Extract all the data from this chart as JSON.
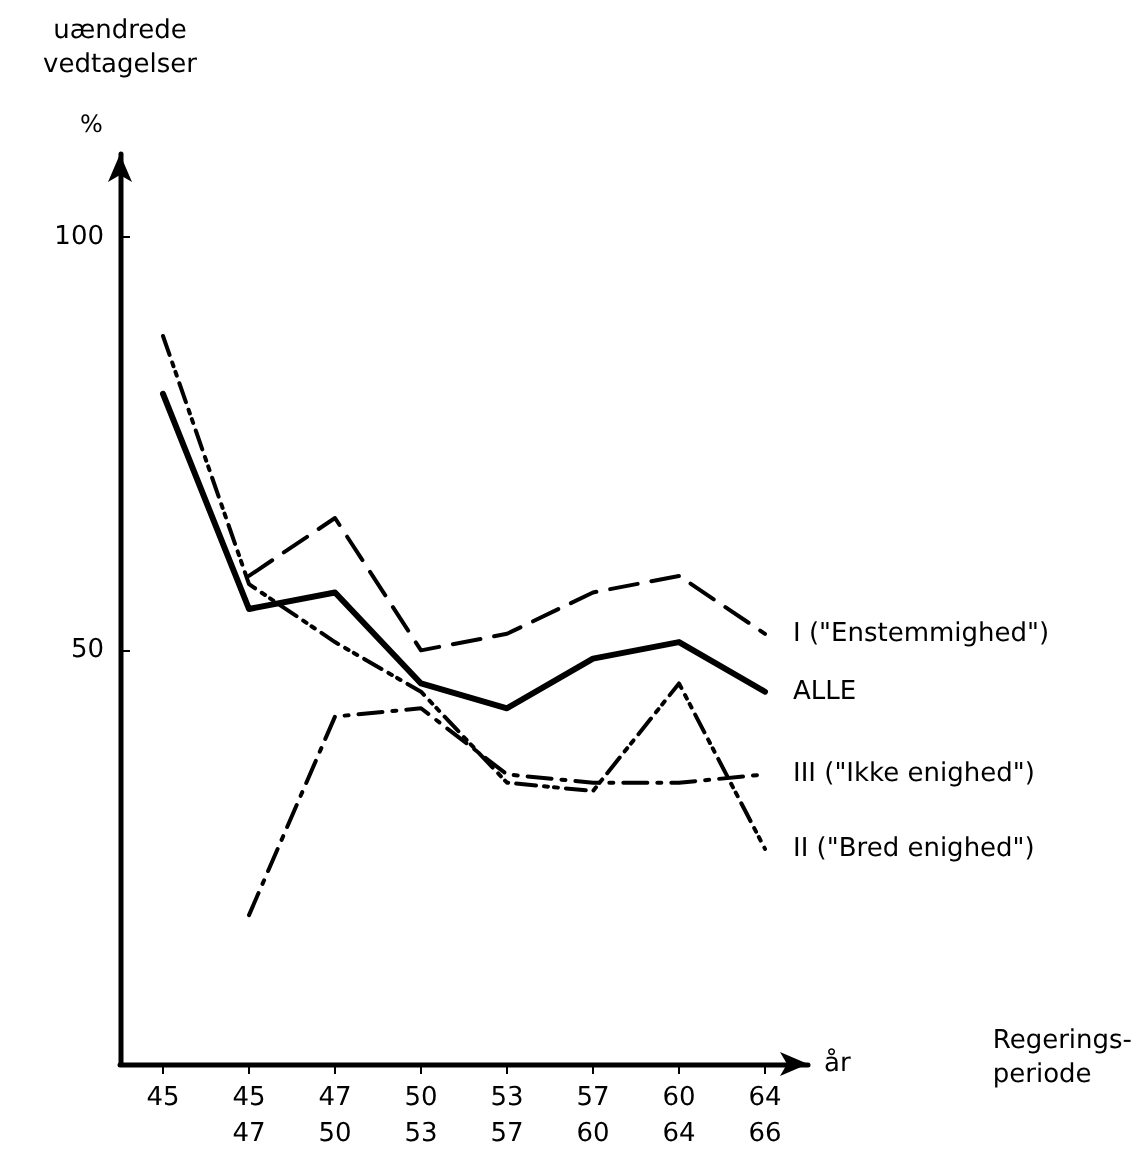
{
  "chart_data": {
    "type": "line",
    "ylabel": "uændrede\nvedtagelser",
    "xlabel": "år",
    "annotations": [
      "%",
      "Regerings-\nperiode"
    ],
    "categories": [
      "45",
      "45\n47",
      "47\n50",
      "50\n53",
      "53\n57",
      "57\n60",
      "60\n64",
      "64\n66"
    ],
    "ylim": [
      0,
      110
    ],
    "yticks": [
      50,
      100
    ],
    "grid": false,
    "legend": false,
    "marker": "none",
    "series": [
      {
        "name": "I (\"Enstemmighed\")",
        "color": "#000000",
        "line_style": "dashed",
        "values": [
          null,
          59,
          66,
          50,
          52,
          57,
          59,
          52
        ]
      },
      {
        "name": "ALLE",
        "color": "#000000",
        "line_style": "solid",
        "values": [
          81,
          55,
          57,
          46,
          43,
          49,
          51,
          45
        ]
      },
      {
        "name": "III (\"Ikke enighed\")",
        "color": "#000000",
        "line_style": "dashdot",
        "values": [
          null,
          18,
          42,
          43,
          35,
          34,
          34,
          35
        ]
      },
      {
        "name": "II (\"Bred enighed\")",
        "color": "#000000",
        "line_style": "dashdotdot",
        "values": [
          88,
          58,
          51,
          45,
          34,
          33,
          46,
          26
        ]
      }
    ]
  }
}
